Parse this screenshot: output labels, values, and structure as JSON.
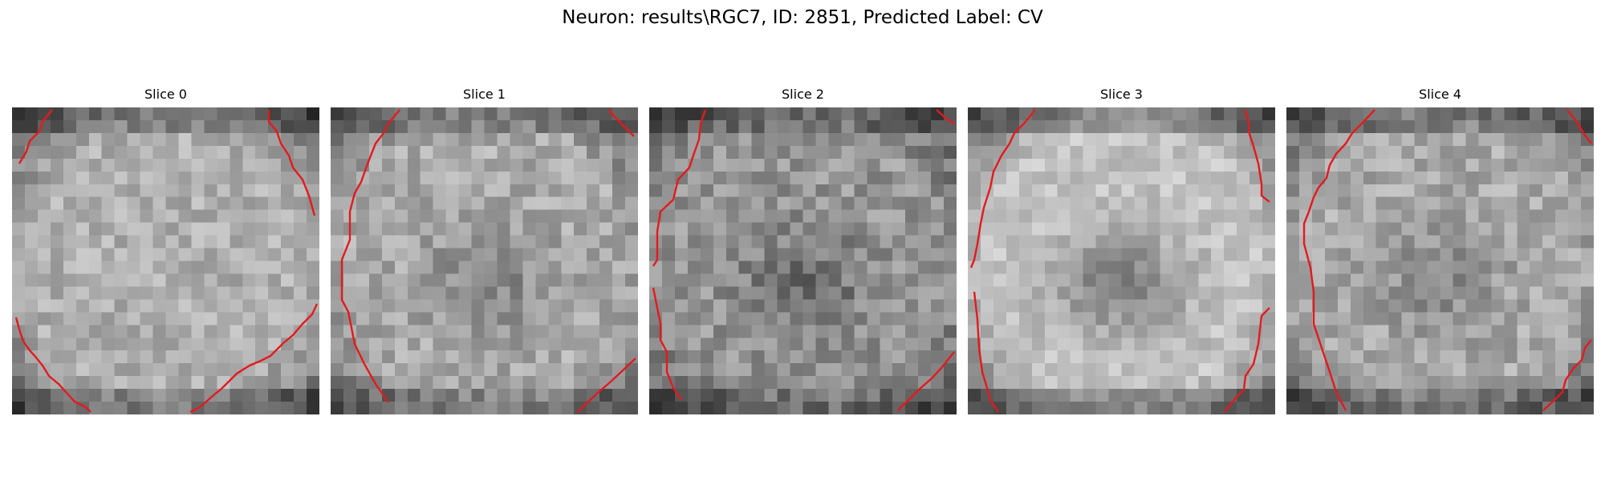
{
  "figure": {
    "title": "Neuron: results\\RGC7, ID: 2851, Predicted Label: CV"
  },
  "slices": [
    {
      "title": "Slice 0"
    },
    {
      "title": "Slice 1"
    },
    {
      "title": "Slice 2"
    },
    {
      "title": "Slice 3"
    },
    {
      "title": "Slice 4"
    }
  ],
  "colors": {
    "contour": "#e41a1c",
    "colormap": "gray"
  }
}
